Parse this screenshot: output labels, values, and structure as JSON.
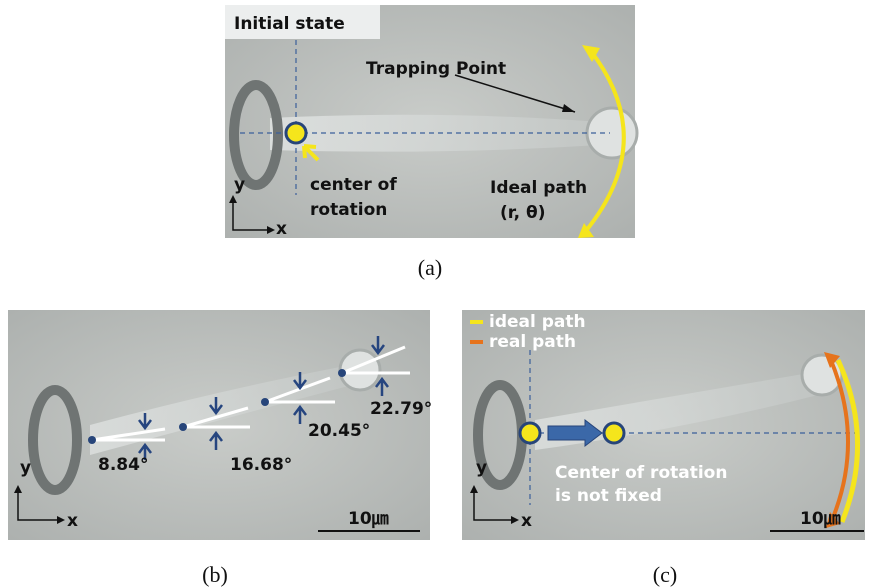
{
  "panels": [
    {
      "label": "(a)",
      "title": "Initial state",
      "annotations": [
        "Trapping Point",
        "center of",
        "rotation",
        "Ideal path",
        "(r, θ)"
      ],
      "axes": [
        "y",
        "x"
      ]
    },
    {
      "label": "(b)",
      "angles": [
        "8.84°",
        "16.68°",
        "20.45°",
        "22.79°"
      ],
      "axes": [
        "y",
        "x"
      ],
      "scale": "10㎛"
    },
    {
      "label": "(c)",
      "legend": [
        "ideal path",
        "real path"
      ],
      "annotations": [
        "Center of rotation",
        "is not fixed"
      ],
      "axes": [
        "y",
        "x"
      ],
      "scale": "10㎛"
    }
  ]
}
